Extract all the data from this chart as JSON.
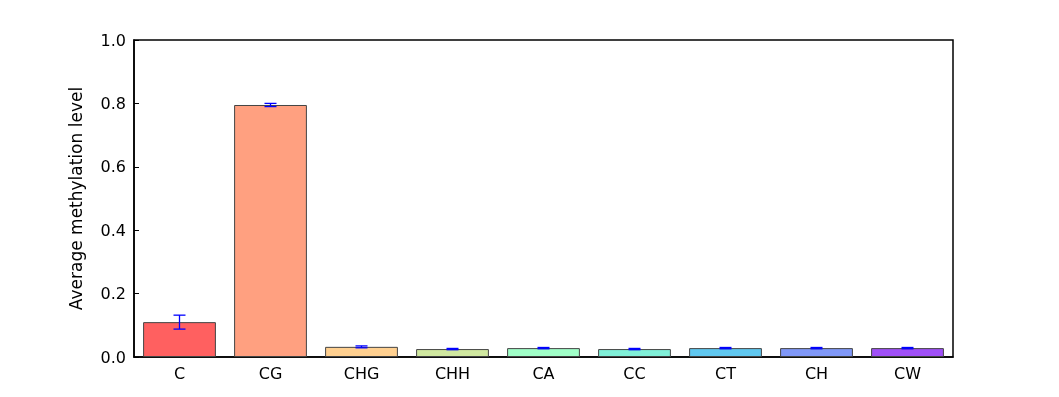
{
  "chart_data": {
    "type": "bar",
    "ylabel": "Average methylation level",
    "categories": [
      "C",
      "CG",
      "CHG",
      "CHH",
      "CA",
      "CC",
      "CT",
      "CH",
      "CW"
    ],
    "values": [
      0.11,
      0.795,
      0.032,
      0.025,
      0.028,
      0.025,
      0.028,
      0.028,
      0.028
    ],
    "errors": [
      0.022,
      0.005,
      0.003,
      0.002,
      0.002,
      0.002,
      0.002,
      0.002,
      0.002
    ],
    "colors": [
      "#ff6060",
      "#ffa080",
      "#ffd090",
      "#d0e8a0",
      "#a0ffc8",
      "#80f0d8",
      "#60c8f0",
      "#8098f8",
      "#a050f8"
    ],
    "ylim": [
      0,
      1
    ],
    "yticks": [
      {
        "value": 0,
        "label": "0.0"
      },
      0.2,
      0.4,
      0.6,
      0.8,
      {
        "value": 1,
        "label": "1.0"
      }
    ],
    "grid": false
  }
}
